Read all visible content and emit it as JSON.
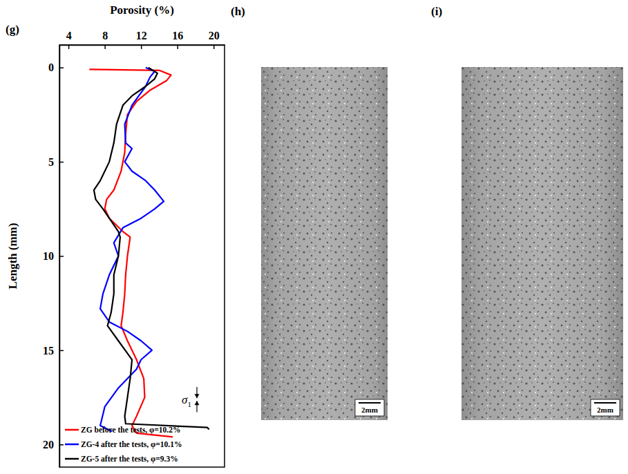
{
  "chart_data": {
    "type": "line",
    "panel_label": "(g)",
    "x_label": "Porosity (%)",
    "y_label": "Length (mm)",
    "xlim": [
      3,
      21.2
    ],
    "xticks": [
      4,
      8,
      12,
      16,
      20
    ],
    "ylim": [
      21.2,
      -1.2
    ],
    "yticks": [
      0,
      5,
      10,
      15,
      20
    ],
    "legend": "lower left",
    "annotation": {
      "symbol": "σ",
      "subscript": "1"
    },
    "series": [
      {
        "name": "ZG before the tests, φ=10.2%",
        "color": "#ff0000",
        "x": [
          6.3,
          14.0,
          15.3,
          14.8,
          13.0,
          11.5,
          10.5,
          10.3,
          10.2,
          9.8,
          9.0,
          8.2,
          8.0,
          8.5,
          10.0,
          10.8,
          10.5,
          10.3,
          10.2,
          10.0,
          9.8,
          10.5,
          11.5,
          12.3,
          12.4,
          11.5,
          11.0,
          11.5,
          15.5
        ],
        "y": [
          0.1,
          0.15,
          0.4,
          0.7,
          1.2,
          1.8,
          2.5,
          3.5,
          4.5,
          5.5,
          6.5,
          7.0,
          7.5,
          8.0,
          8.7,
          9.0,
          10,
          11,
          12,
          13,
          13.7,
          14.5,
          15.5,
          16.5,
          17.5,
          18.5,
          19.0,
          19.4,
          19.6
        ]
      },
      {
        "name": "ZG-4 after the tests, φ=10.1%",
        "color": "#0000ff",
        "x": [
          12.5,
          13.5,
          13.0,
          12.5,
          11.0,
          10.2,
          10.3,
          11.0,
          10.2,
          11.0,
          12.5,
          13.5,
          14.5,
          13.5,
          12.0,
          10.0,
          9.0,
          9.5,
          8.5,
          7.8,
          7.5,
          8.5,
          10.5,
          12.0,
          13.2,
          12.0,
          11.5,
          9.5,
          8.0,
          7.5,
          8.8
        ],
        "y": [
          0,
          0.2,
          0.5,
          1,
          2,
          3,
          4,
          4.3,
          5,
          5.5,
          6,
          6.5,
          7.1,
          7.5,
          8,
          8.5,
          9.3,
          10,
          11,
          12,
          12.8,
          13.5,
          14,
          14.5,
          15,
          15.5,
          16,
          17,
          18,
          19,
          19.3
        ]
      },
      {
        "name": "ZG-5 after the tests, φ=9.3%",
        "color": "#000000",
        "x": [
          12.8,
          13.8,
          13.5,
          12.5,
          11.0,
          10.0,
          9.3,
          9.0,
          8.5,
          7.5,
          6.8,
          7.0,
          7.8,
          8.5,
          9.5,
          9.7,
          9.5,
          9.0,
          9.0,
          8.7,
          8.3,
          9.5,
          11.0,
          10.8,
          10.5,
          10.2,
          10.3,
          19.3,
          19.5
        ],
        "y": [
          0,
          0.3,
          0.6,
          1,
          1.5,
          2,
          3,
          4,
          5,
          6,
          6.5,
          7,
          7.5,
          8,
          8.7,
          9,
          10,
          11,
          12,
          13,
          13.7,
          14.5,
          15.5,
          16.5,
          17.5,
          18.5,
          18.9,
          19.1,
          19.2
        ]
      }
    ]
  },
  "images": [
    {
      "label": "(h)",
      "scale_bar": "2mm"
    },
    {
      "label": "(i)",
      "scale_bar": "2mm"
    }
  ]
}
